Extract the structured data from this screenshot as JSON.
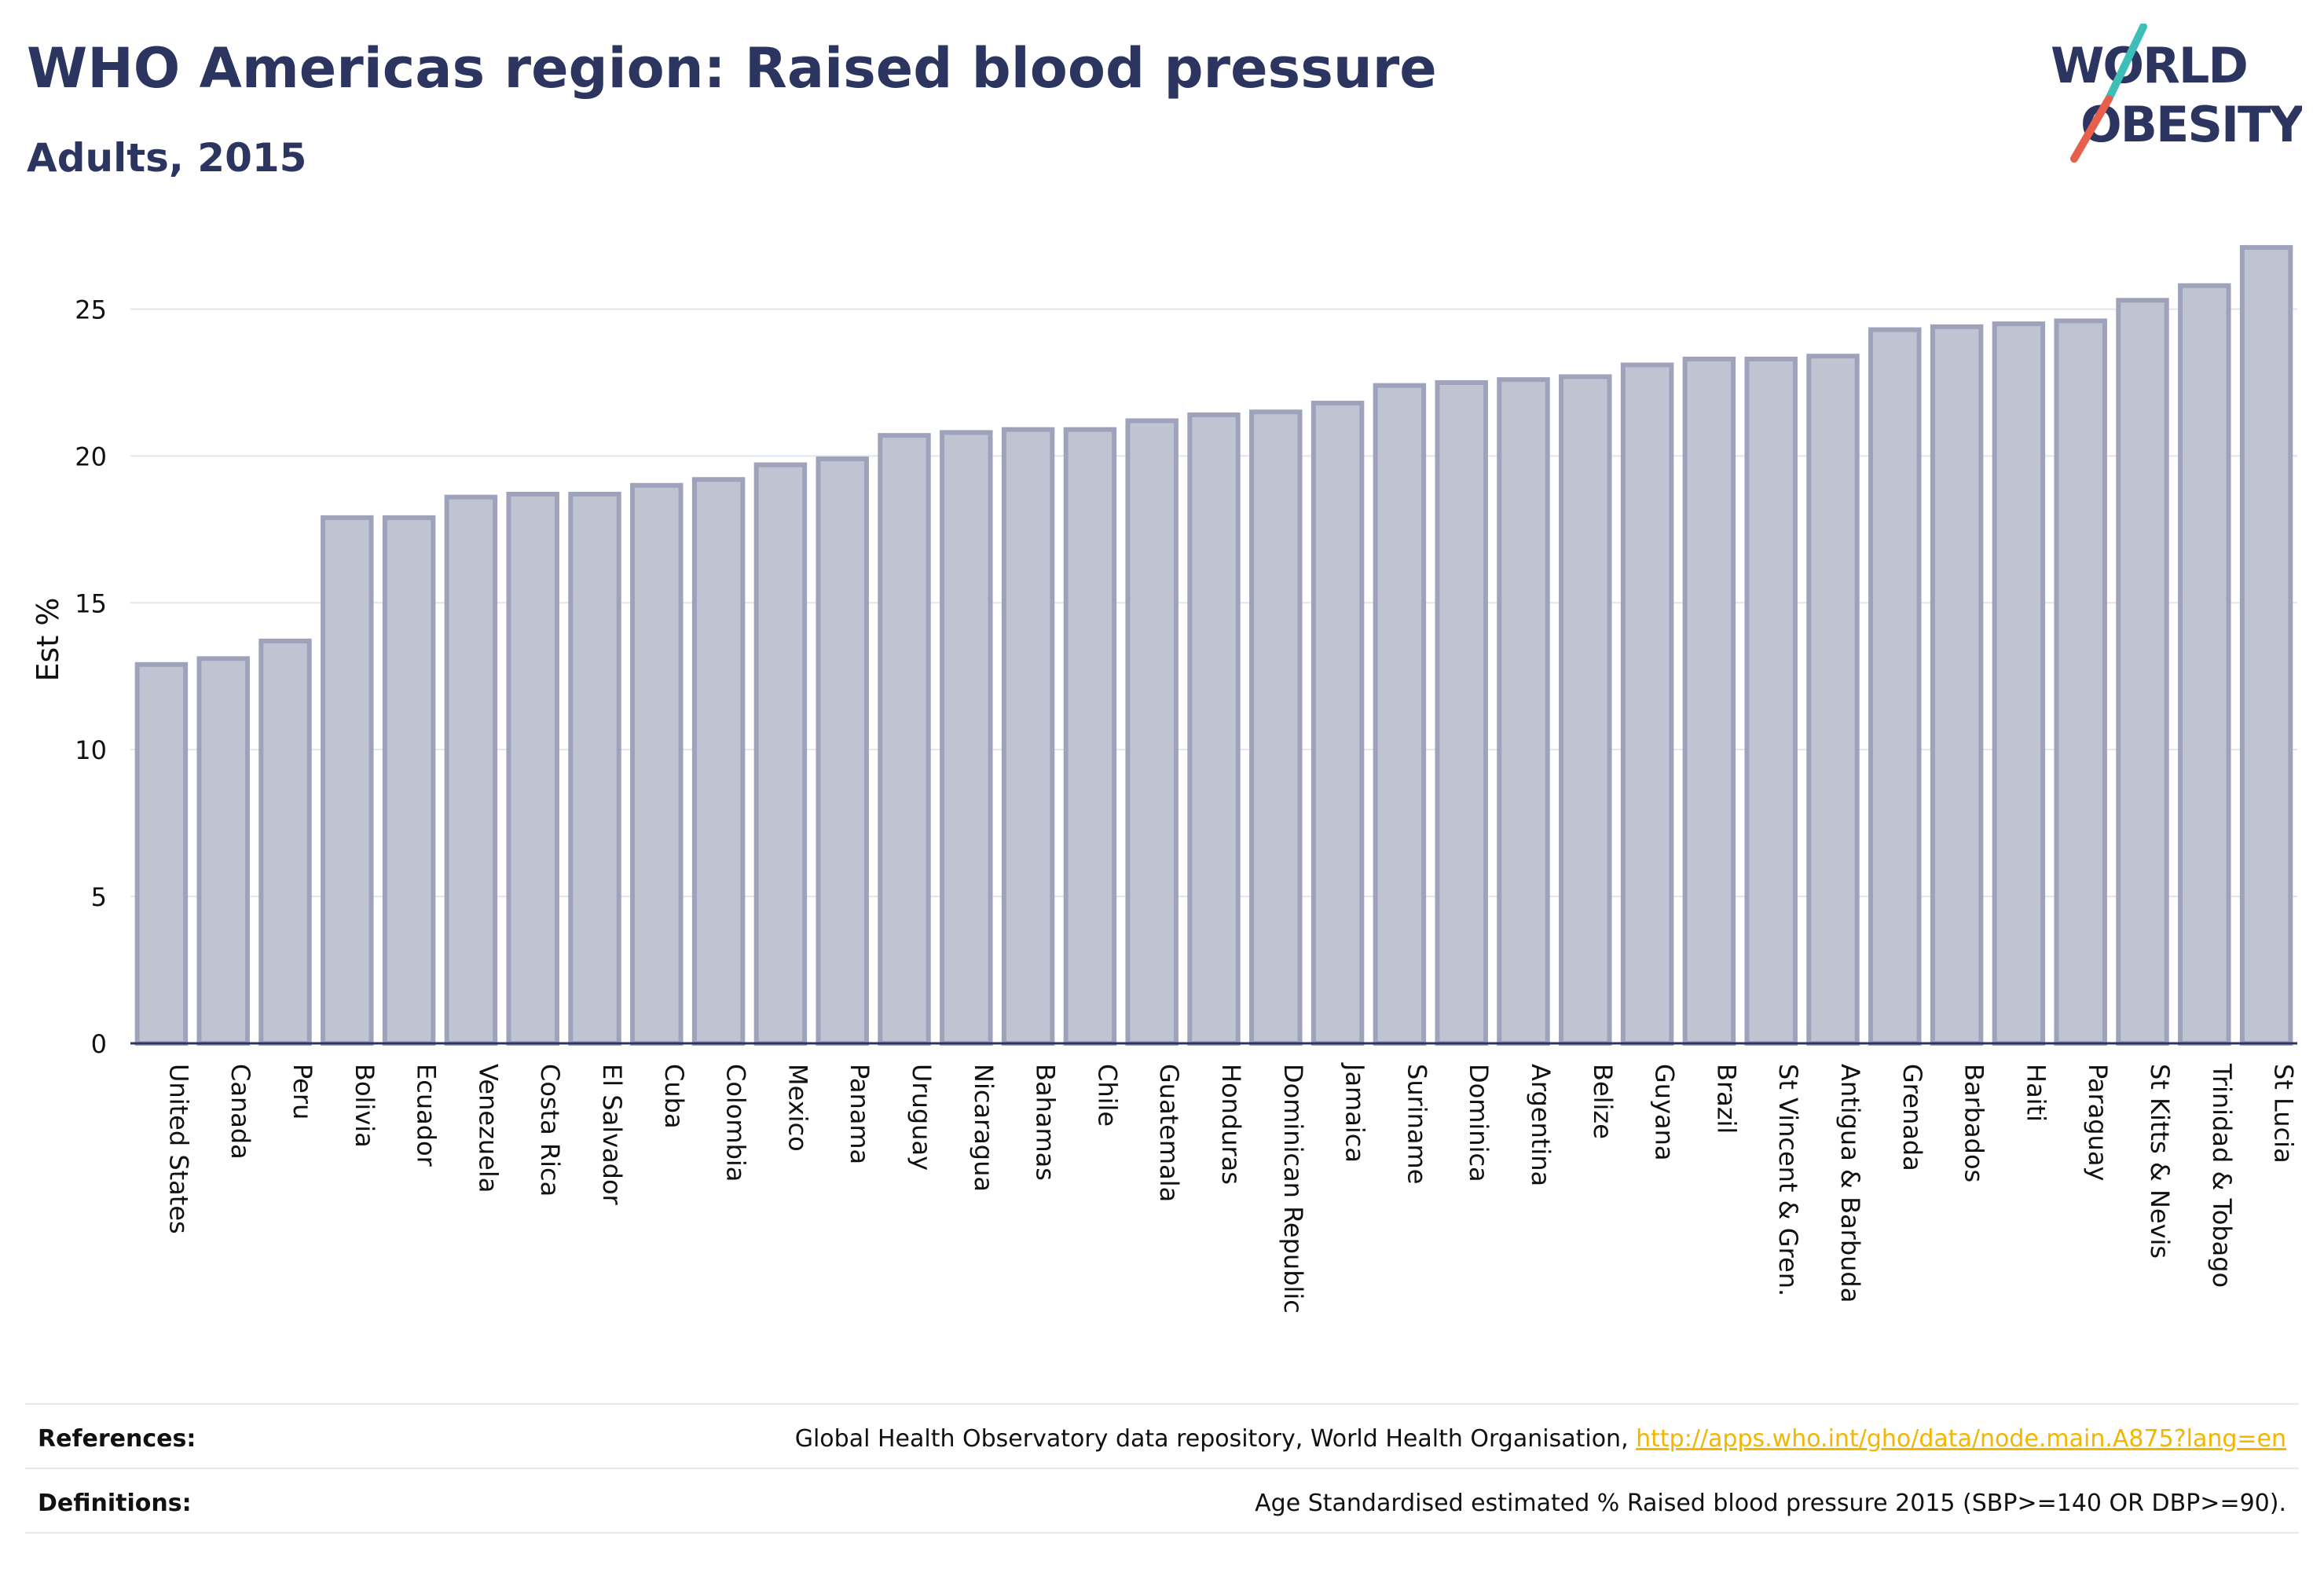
{
  "header": {
    "title": "WHO Americas region: Raised blood pressure",
    "subtitle": "Adults, 2015"
  },
  "logo": {
    "line1": "WORLD",
    "line2": "OBESITY",
    "accent_colors": [
      "#3dbfb8",
      "#e8604c"
    ]
  },
  "footer": {
    "references_label": "References:",
    "references_text": "Global Health Observatory data repository, World Health Organisation, ",
    "references_link": "http://apps.who.int/gho/data/node.main.A875?lang=en",
    "definitions_label": "Definitions:",
    "definitions_text": "Age Standardised estimated % Raised blood pressure 2015 (SBP>=140 OR DBP>=90)."
  },
  "colors": {
    "bar_fill": "#c0c3d1",
    "bar_stroke": "#9ea3bb",
    "axis": "#2b3560",
    "grid": "#e3e5ec",
    "text": "#111111"
  },
  "chart_data": {
    "type": "bar",
    "ylabel": "Est %",
    "xlabel": "",
    "ylim": [
      0,
      27.5
    ],
    "yticks": [
      0,
      5,
      10,
      15,
      20,
      25
    ],
    "grid": true,
    "categories": [
      "United States",
      "Canada",
      "Peru",
      "Bolivia",
      "Ecuador",
      "Venezuela",
      "Costa Rica",
      "El Salvador",
      "Cuba",
      "Colombia",
      "Mexico",
      "Panama",
      "Uruguay",
      "Nicaragua",
      "Bahamas",
      "Chile",
      "Guatemala",
      "Honduras",
      "Dominican Republic",
      "Jamaica",
      "Suriname",
      "Dominica",
      "Argentina",
      "Belize",
      "Guyana",
      "Brazil",
      "St Vincent & Gren.",
      "Antigua & Barbuda",
      "Grenada",
      "Barbados",
      "Haiti",
      "Paraguay",
      "St Kitts & Nevis",
      "Trinidad & Tobago",
      "St Lucia"
    ],
    "values": [
      12.9,
      13.1,
      13.7,
      17.9,
      17.9,
      18.6,
      18.7,
      18.7,
      19.0,
      19.2,
      19.7,
      19.9,
      20.7,
      20.8,
      20.9,
      20.9,
      21.2,
      21.4,
      21.5,
      21.8,
      22.4,
      22.5,
      22.6,
      22.7,
      23.1,
      23.3,
      23.3,
      23.4,
      24.3,
      24.4,
      24.5,
      24.6,
      25.3,
      25.8,
      27.1
    ]
  }
}
